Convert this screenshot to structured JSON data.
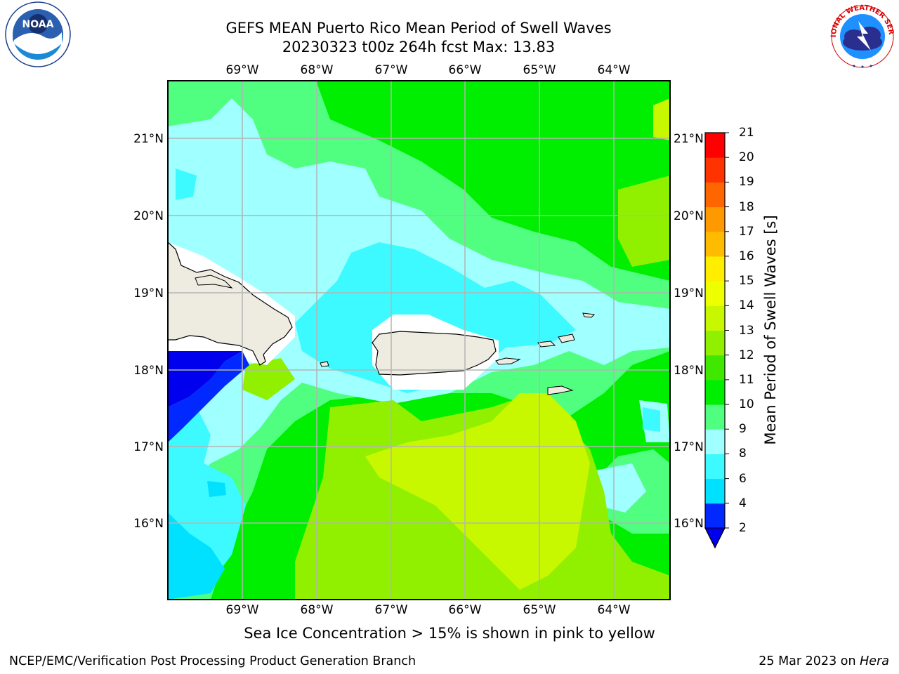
{
  "header": {
    "title_line1": "GEFS MEAN Puerto Rico Mean Period of Swell Waves",
    "title_line2": "20230323 t00z 264h fcst   Max: 13.83"
  },
  "logos": {
    "left": {
      "icon": "noaa-logo-icon",
      "text": "NOAA"
    },
    "right": {
      "icon": "nws-logo-icon",
      "text": "NATIONAL WEATHER SERVICE"
    }
  },
  "map": {
    "lon_labels": [
      "69°W",
      "68°W",
      "67°W",
      "66°W",
      "65°W",
      "64°W"
    ],
    "lat_labels": [
      "21°N",
      "20°N",
      "19°N",
      "18°N",
      "17°N",
      "16°N"
    ],
    "land_color": "#eeece0",
    "grid_color": "#b4b4b4"
  },
  "colorbar": {
    "title": "Mean Period of Swell Waves [s]",
    "levels": [
      "2",
      "4",
      "6",
      "8",
      "9",
      "10",
      "11",
      "12",
      "13",
      "14",
      "15",
      "16",
      "17",
      "18",
      "19",
      "20",
      "21"
    ],
    "colors": [
      "#0028ff",
      "#00e1ff",
      "#3cfaff",
      "#a0ffff",
      "#50ff80",
      "#00ee00",
      "#40e800",
      "#90f000",
      "#c8f800",
      "#eeff00",
      "#ffee00",
      "#ffbb00",
      "#ff9900",
      "#ff6600",
      "#ff3300",
      "#ff0000"
    ],
    "extend_color": "#0000ee"
  },
  "footer": {
    "ice_note": "Sea Ice Concentration > 15% is shown in pink to yellow",
    "left": "NCEP/EMC/Verification Post Processing Product Generation Branch",
    "right_date": "25 Mar 2023 on",
    "right_host": "Hera"
  }
}
